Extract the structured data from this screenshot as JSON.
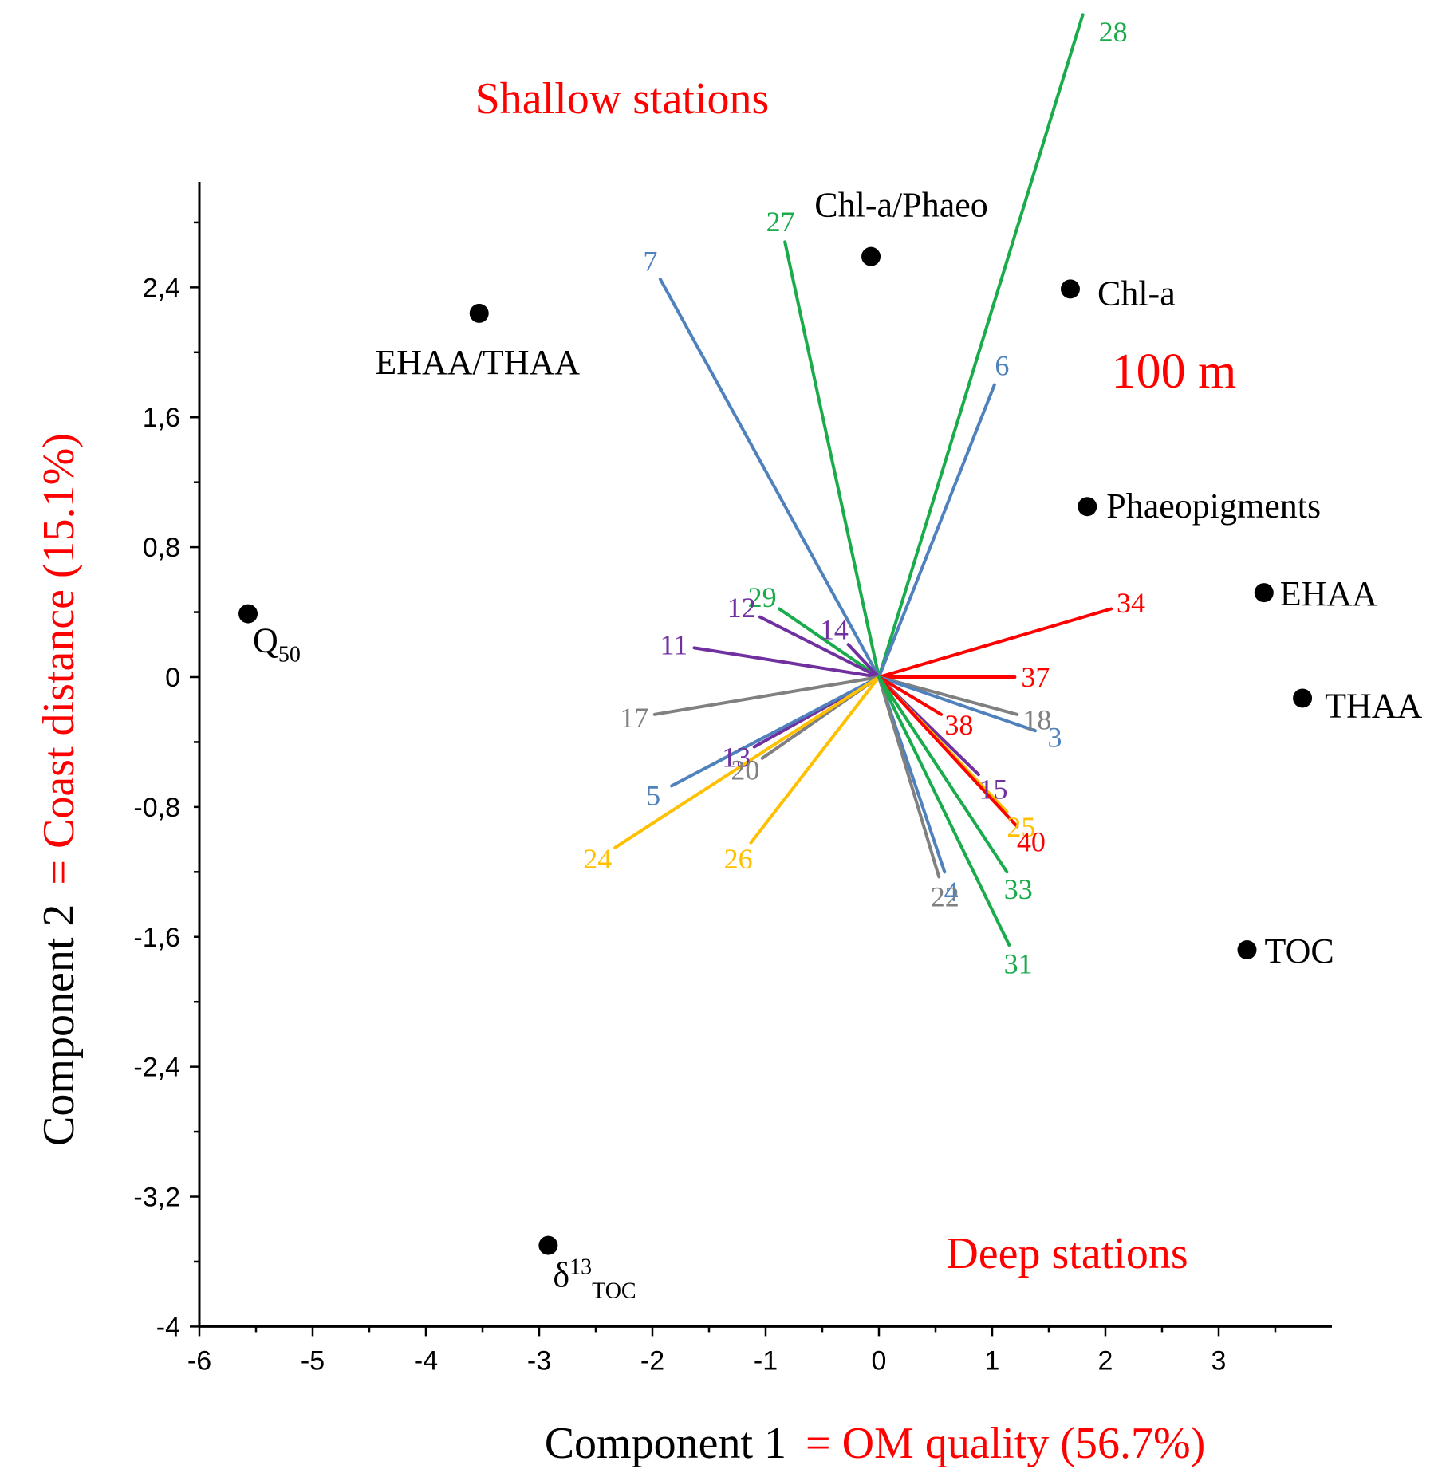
{
  "colors": {
    "axis": "#000000",
    "highlight": "#ff0000",
    "blue": "#4f81bd",
    "green": "#1aab4b",
    "red": "#ff0000",
    "purple": "#7030a0",
    "gray": "#808080",
    "yellow": "#ffc000",
    "point": "#000000"
  },
  "chart_data": {
    "type": "scatter",
    "title": "",
    "region_labels": {
      "top": "Shallow stations",
      "bottom": "Deep stations",
      "depth": "100 m"
    },
    "xaxis": {
      "label_prefix": "Component 1",
      "label_suffix": "= OM quality (56.7%)",
      "range": [
        -6,
        4
      ],
      "ticks": [
        "-6",
        "-5",
        "-4",
        "-3",
        "-2",
        "-1",
        "0",
        "1",
        "2",
        "3"
      ],
      "tick_values": [
        -6,
        -5,
        -4,
        -3,
        -2,
        -1,
        0,
        1,
        2,
        3
      ]
    },
    "yaxis": {
      "label_prefix": "Component 2",
      "label_suffix": "= Coast distance (15.1%)",
      "range": [
        -4,
        3.0
      ],
      "ticks": [
        "2,4",
        "1,6",
        "0,8",
        "0",
        "-0,8",
        "-1,6",
        "-2,4",
        "-3,2",
        "-4"
      ],
      "tick_values": [
        2.4,
        1.6,
        0.8,
        0,
        -0.8,
        -1.6,
        -2.4,
        -3.2,
        -4
      ]
    },
    "grid": false,
    "variables": [
      {
        "name": "Chl-a/Phaeo",
        "x": -0.07,
        "y": 2.59,
        "sub": "",
        "sup": ""
      },
      {
        "name": "Chl-a",
        "x": 1.69,
        "y": 2.39,
        "sub": "",
        "sup": ""
      },
      {
        "name": "EHAA/THAA",
        "x": -3.53,
        "y": 2.24,
        "sub": "",
        "sup": ""
      },
      {
        "name": "Phaeopigments",
        "x": 1.84,
        "y": 1.05,
        "sub": "",
        "sup": ""
      },
      {
        "name": "EHAA",
        "x": 3.4,
        "y": 0.52,
        "sub": "",
        "sup": ""
      },
      {
        "name": "Q",
        "x": -5.57,
        "y": 0.39,
        "sub": "50",
        "sup": ""
      },
      {
        "name": "THAA",
        "x": 3.74,
        "y": -0.13,
        "sub": "",
        "sup": ""
      },
      {
        "name": "TOC",
        "x": 3.25,
        "y": -1.68,
        "sub": "",
        "sup": ""
      },
      {
        "name": "δ",
        "x": -2.92,
        "y": -3.5,
        "sub": "TOC",
        "sup": "13"
      }
    ],
    "stations": [
      {
        "id": "28",
        "group": "green",
        "x": 1.8,
        "y": 4.08
      },
      {
        "id": "27",
        "group": "green",
        "x": -0.83,
        "y": 2.68
      },
      {
        "id": "7",
        "group": "blue",
        "x": -1.93,
        "y": 2.45
      },
      {
        "id": "6",
        "group": "blue",
        "x": 1.02,
        "y": 1.8
      },
      {
        "id": "34",
        "group": "red",
        "x": 2.05,
        "y": 0.42
      },
      {
        "id": "29",
        "group": "green",
        "x": -0.88,
        "y": 0.42
      },
      {
        "id": "12",
        "group": "purple",
        "x": -1.05,
        "y": 0.37
      },
      {
        "id": "14",
        "group": "purple",
        "x": -0.27,
        "y": 0.2
      },
      {
        "id": "11",
        "group": "purple",
        "x": -1.63,
        "y": 0.18
      },
      {
        "id": "37",
        "group": "red",
        "x": 1.2,
        "y": 0.0
      },
      {
        "id": "17",
        "group": "gray",
        "x": -1.98,
        "y": -0.23
      },
      {
        "id": "18",
        "group": "gray",
        "x": 1.22,
        "y": -0.23
      },
      {
        "id": "3",
        "group": "blue",
        "x": 1.38,
        "y": -0.33
      },
      {
        "id": "38",
        "group": "red",
        "x": 0.55,
        "y": -0.23
      },
      {
        "id": "13",
        "group": "purple",
        "x": -1.1,
        "y": -0.43
      },
      {
        "id": "20",
        "group": "gray",
        "x": -1.03,
        "y": -0.5
      },
      {
        "id": "15",
        "group": "purple",
        "x": 0.88,
        "y": -0.6
      },
      {
        "id": "5",
        "group": "blue",
        "x": -1.83,
        "y": -0.67
      },
      {
        "id": "25",
        "group": "yellow",
        "x": 1.13,
        "y": -0.83
      },
      {
        "id": "40",
        "group": "red",
        "x": 1.22,
        "y": -0.92
      },
      {
        "id": "24",
        "group": "yellow",
        "x": -2.33,
        "y": -1.05
      },
      {
        "id": "26",
        "group": "yellow",
        "x": -1.13,
        "y": -1.02
      },
      {
        "id": "4",
        "group": "blue",
        "x": 0.58,
        "y": -1.2
      },
      {
        "id": "33",
        "group": "green",
        "x": 1.13,
        "y": -1.2
      },
      {
        "id": "22",
        "group": "gray",
        "x": 0.53,
        "y": -1.23
      },
      {
        "id": "31",
        "group": "green",
        "x": 1.15,
        "y": -1.65
      }
    ]
  }
}
